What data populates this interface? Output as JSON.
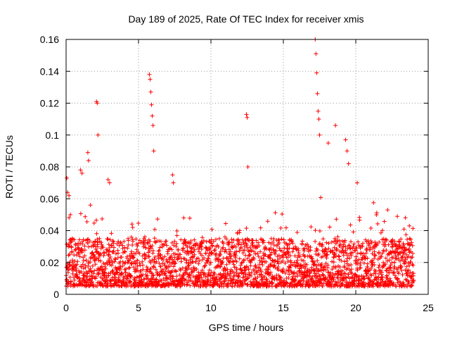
{
  "chart_data": {
    "type": "scatter",
    "title": "Day 189 of 2025, Rate Of TEC Index for receiver xmis",
    "xlabel": "GPS time / hours",
    "ylabel": "ROTI / TECUs",
    "xlim": [
      0,
      25
    ],
    "ylim": [
      0,
      0.16
    ],
    "xticks": [
      0,
      5,
      10,
      15,
      20,
      25
    ],
    "yticks": [
      0,
      0.02,
      0.04,
      0.06,
      0.08,
      0.1,
      0.12,
      0.14,
      0.16
    ],
    "ytick_labels": [
      "0",
      "0.02",
      "0.04",
      "0.06",
      "0.08",
      "0.1",
      "0.12",
      "0.14",
      "0.16"
    ],
    "grid": true,
    "marker": "+",
    "color": "#ff0000",
    "x_range_of_data": [
      0,
      24
    ],
    "typical_band": [
      0.005,
      0.035
    ],
    "series": [
      {
        "name": "",
        "x": [
          0.05,
          0.1,
          0.2,
          0.3,
          1.0,
          1.1,
          1.5,
          1.55,
          2.1,
          2.15,
          2.2,
          2.9,
          3.0,
          5.75,
          5.8,
          5.85,
          5.9,
          5.95,
          6.0,
          6.05,
          7.35,
          7.4,
          12.45,
          12.5,
          12.55,
          17.2,
          17.25,
          17.3,
          17.35,
          17.4,
          17.45,
          17.5,
          18.1,
          18.6,
          19.3,
          19.4,
          19.5,
          20.1,
          22.2,
          23.7
        ],
        "y": [
          0.073,
          0.064,
          0.062,
          0.05,
          0.078,
          0.076,
          0.089,
          0.084,
          0.121,
          0.12,
          0.1,
          0.072,
          0.07,
          0.138,
          0.135,
          0.127,
          0.119,
          0.112,
          0.106,
          0.09,
          0.075,
          0.07,
          0.113,
          0.111,
          0.08,
          0.16,
          0.151,
          0.139,
          0.126,
          0.115,
          0.11,
          0.1,
          0.095,
          0.106,
          0.097,
          0.09,
          0.082,
          0.07,
          0.053,
          0.043
        ]
      }
    ]
  }
}
